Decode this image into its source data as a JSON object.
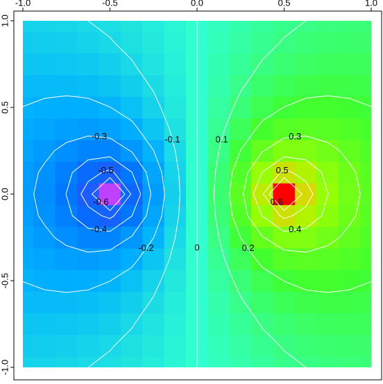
{
  "chart_data": {
    "type": "heatmap",
    "xlim": [
      -1,
      1
    ],
    "ylim": [
      -1,
      1
    ],
    "xticks": [
      {
        "value": -1,
        "label": "-1.0"
      },
      {
        "value": -0.5,
        "label": "-0.5"
      },
      {
        "value": 0,
        "label": "0.0"
      },
      {
        "value": 0.5,
        "label": "0.5"
      },
      {
        "value": 1,
        "label": "1.0"
      }
    ],
    "yticks": [
      {
        "value": -1,
        "label": "-1.0"
      },
      {
        "value": -0.5,
        "label": "-0.5"
      },
      {
        "value": 0,
        "label": "0.0"
      },
      {
        "value": 0.5,
        "label": "0.5"
      },
      {
        "value": 1,
        "label": "1.0"
      }
    ],
    "z": [
      [
        -0.119,
        -0.116,
        -0.11,
        -0.1,
        -0.087,
        -0.069,
        -0.048,
        -0.025,
        0,
        0.025,
        0.048,
        0.069,
        0.087,
        0.1,
        0.11,
        0.116,
        0.119
      ],
      [
        -0.136,
        -0.134,
        -0.129,
        -0.119,
        -0.104,
        -0.084,
        -0.059,
        -0.03,
        0,
        0.03,
        0.059,
        0.084,
        0.104,
        0.119,
        0.129,
        0.134,
        0.136
      ],
      [
        -0.155,
        -0.156,
        -0.153,
        -0.144,
        -0.128,
        -0.104,
        -0.073,
        -0.038,
        0,
        0.038,
        0.073,
        0.104,
        0.128,
        0.144,
        0.153,
        0.156,
        0.155
      ],
      [
        -0.177,
        -0.182,
        -0.183,
        -0.176,
        -0.159,
        -0.131,
        -0.093,
        -0.048,
        0,
        0.048,
        0.093,
        0.131,
        0.159,
        0.176,
        0.183,
        0.182,
        0.177
      ],
      [
        -0.201,
        -0.213,
        -0.22,
        -0.218,
        -0.201,
        -0.168,
        -0.119,
        -0.062,
        0,
        0.062,
        0.119,
        0.168,
        0.201,
        0.218,
        0.22,
        0.213,
        0.201
      ],
      [
        -0.226,
        -0.247,
        -0.266,
        -0.275,
        -0.262,
        -0.22,
        -0.155,
        -0.08,
        0,
        0.08,
        0.155,
        0.22,
        0.262,
        0.275,
        0.266,
        0.247,
        0.226
      ],
      [
        -0.25,
        -0.283,
        -0.321,
        -0.354,
        -0.354,
        -0.295,
        -0.201,
        -0.1,
        0,
        0.1,
        0.201,
        0.295,
        0.354,
        0.354,
        0.321,
        0.283,
        0.25
      ],
      [
        -0.268,
        -0.313,
        -0.376,
        -0.464,
        -0.522,
        -0.402,
        -0.25,
        -0.119,
        0,
        0.119,
        0.25,
        0.402,
        0.522,
        0.464,
        0.376,
        0.313,
        0.268
      ],
      [
        -0.275,
        -0.325,
        -0.402,
        -0.549,
        -0.85,
        -0.486,
        -0.275,
        -0.128,
        0,
        0.128,
        0.275,
        0.486,
        0.85,
        0.549,
        0.402,
        0.325,
        0.275
      ],
      [
        -0.268,
        -0.313,
        -0.376,
        -0.464,
        -0.522,
        -0.402,
        -0.25,
        -0.119,
        0,
        0.119,
        0.25,
        0.402,
        0.522,
        0.464,
        0.376,
        0.313,
        0.268
      ],
      [
        -0.25,
        -0.283,
        -0.321,
        -0.354,
        -0.354,
        -0.295,
        -0.201,
        -0.1,
        0,
        0.1,
        0.201,
        0.295,
        0.354,
        0.354,
        0.321,
        0.283,
        0.25
      ],
      [
        -0.226,
        -0.247,
        -0.266,
        -0.275,
        -0.262,
        -0.22,
        -0.155,
        -0.08,
        0,
        0.08,
        0.155,
        0.22,
        0.262,
        0.275,
        0.266,
        0.247,
        0.226
      ],
      [
        -0.201,
        -0.213,
        -0.22,
        -0.218,
        -0.201,
        -0.168,
        -0.119,
        -0.062,
        0,
        0.062,
        0.119,
        0.168,
        0.201,
        0.218,
        0.22,
        0.213,
        0.201
      ],
      [
        -0.177,
        -0.182,
        -0.183,
        -0.176,
        -0.159,
        -0.131,
        -0.093,
        -0.048,
        0,
        0.048,
        0.093,
        0.131,
        0.159,
        0.176,
        0.183,
        0.182,
        0.177
      ],
      [
        -0.155,
        -0.156,
        -0.153,
        -0.144,
        -0.128,
        -0.104,
        -0.073,
        -0.038,
        0,
        0.038,
        0.073,
        0.104,
        0.128,
        0.144,
        0.153,
        0.156,
        0.155
      ],
      [
        -0.136,
        -0.134,
        -0.129,
        -0.119,
        -0.104,
        -0.084,
        -0.059,
        -0.03,
        0,
        0.03,
        0.059,
        0.084,
        0.104,
        0.119,
        0.129,
        0.134,
        0.136
      ],
      [
        -0.119,
        -0.116,
        -0.11,
        -0.1,
        -0.087,
        -0.069,
        -0.048,
        -0.025,
        0,
        0.025,
        0.048,
        0.069,
        0.087,
        0.1,
        0.11,
        0.116,
        0.119
      ]
    ],
    "colors": [
      "#c040ff",
      "#3050ff",
      "#0070ff",
      "#00b0ff",
      "#30ffd0",
      "#40ff30",
      "#a0ff00",
      "#ffc000",
      "#ff0000"
    ],
    "contour_levels": [
      -0.6,
      -0.5,
      -0.4,
      -0.3,
      -0.2,
      -0.1,
      0,
      0.1,
      0.2,
      0.3,
      0.4,
      0.5,
      0.6
    ],
    "contour_color": "#ffffff"
  }
}
